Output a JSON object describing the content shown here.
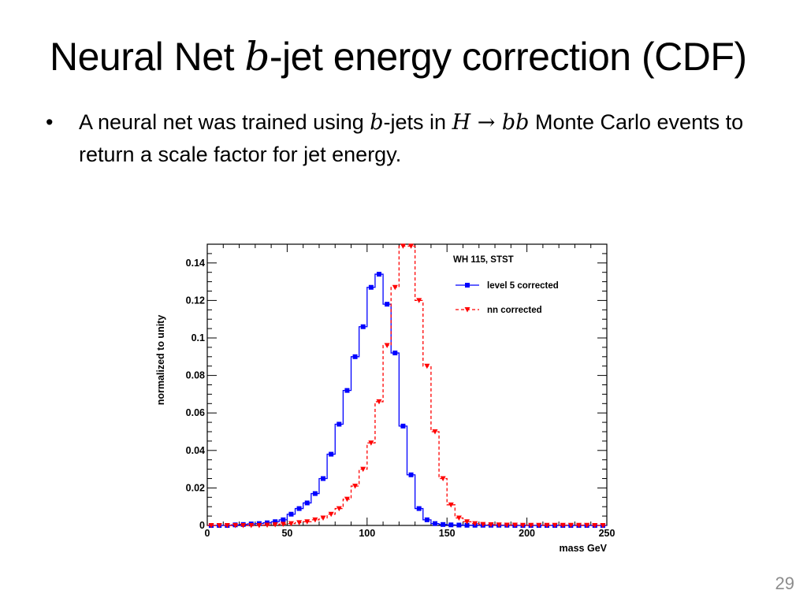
{
  "slide": {
    "title_part1": "Neural Net ",
    "title_italic": "b",
    "title_part2": "-jet energy correction (CDF)",
    "bullet_symbol": "•",
    "bullet_part1": "A neural net was trained using ",
    "bullet_italic_b": "b",
    "bullet_part2": "-jets in ",
    "bullet_math": "H → bb",
    "bullet_part3": " Monte Carlo events to return a scale factor for jet energy.",
    "page_number": "29"
  },
  "chart_data": {
    "type": "line",
    "title": "WH 115, STST",
    "xlabel": "mass GeV",
    "ylabel": "normalized to unity",
    "xlim": [
      0,
      250
    ],
    "ylim": [
      0,
      0.15
    ],
    "xticks": [
      "0",
      "50",
      "100",
      "150",
      "200",
      "250"
    ],
    "yticks": [
      "0",
      "0.02",
      "0.04",
      "0.06",
      "0.08",
      "0.1",
      "0.12",
      "0.14"
    ],
    "grid": false,
    "legend_position": "top-right",
    "bin_width": 5,
    "bin_centers": [
      2.5,
      7.5,
      12.5,
      17.5,
      22.5,
      27.5,
      32.5,
      37.5,
      42.5,
      47.5,
      52.5,
      57.5,
      62.5,
      67.5,
      72.5,
      77.5,
      82.5,
      87.5,
      92.5,
      97.5,
      102.5,
      107.5,
      112.5,
      117.5,
      122.5,
      127.5,
      132.5,
      137.5,
      142.5,
      147.5,
      152.5,
      157.5,
      162.5,
      167.5,
      172.5,
      177.5,
      182.5,
      187.5,
      192.5,
      197.5,
      202.5,
      207.5,
      212.5,
      217.5,
      222.5,
      227.5,
      232.5,
      237.5,
      242.5,
      247.5
    ],
    "series": [
      {
        "name": "level 5 corrected",
        "color": "#0000ff",
        "line_style": "solid",
        "marker": "square",
        "values": [
          0,
          0,
          0,
          0.0003,
          0.0005,
          0.0008,
          0.001,
          0.0014,
          0.002,
          0.003,
          0.006,
          0.009,
          0.012,
          0.017,
          0.025,
          0.038,
          0.054,
          0.072,
          0.09,
          0.106,
          0.127,
          0.134,
          0.118,
          0.092,
          0.053,
          0.027,
          0.009,
          0.003,
          0.001,
          0.0005,
          0.0003,
          0.0002,
          0.0001,
          0.0001,
          0.0001,
          0.0001,
          0.0001,
          0.0001,
          0,
          0,
          0,
          0,
          0,
          0,
          0,
          0,
          0,
          0,
          0,
          0
        ]
      },
      {
        "name": "nn corrected",
        "color": "#ff0000",
        "line_style": "dashed",
        "marker": "triangle-down",
        "values": [
          0,
          0,
          0,
          0,
          0,
          0,
          0,
          0.0002,
          0.0004,
          0.0007,
          0.001,
          0.0015,
          0.002,
          0.003,
          0.004,
          0.006,
          0.009,
          0.014,
          0.021,
          0.03,
          0.044,
          0.066,
          0.096,
          0.127,
          0.149,
          0.149,
          0.12,
          0.085,
          0.05,
          0.025,
          0.011,
          0.004,
          0.002,
          0.001,
          0.0006,
          0.0004,
          0.0003,
          0.0002,
          0.0002,
          0.0001,
          0.0001,
          0.0001,
          0.0001,
          0.0001,
          0.0001,
          0.0001,
          0.0001,
          0.0001,
          0,
          0
        ]
      }
    ]
  }
}
